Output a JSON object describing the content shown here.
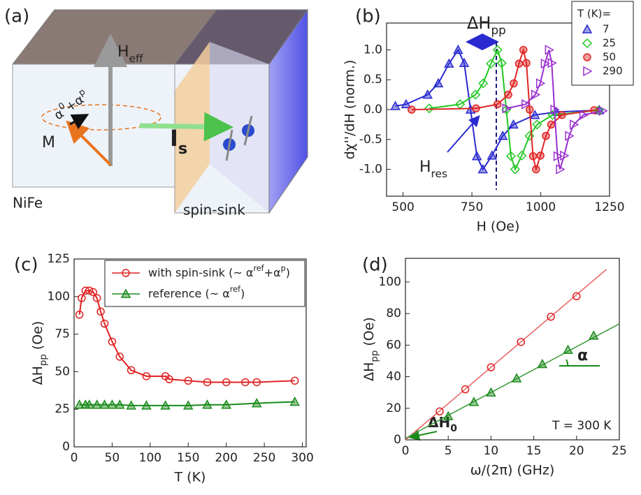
{
  "diagram": {
    "panel_label": "(a)",
    "labels": {
      "alpha": "α^0+α^p",
      "h_eff": "H_eff",
      "m": "M",
      "i_s": "I_s",
      "nife": "NiFe",
      "spin_sink": "spin-sink"
    }
  },
  "chart_data": [
    {
      "type": "line",
      "panel_label": "(b)",
      "x_label": "H (Oe)",
      "y_label": "dχ''/dH (norm.)",
      "xlim": [
        440,
        1250
      ],
      "ylim": [
        -1.45,
        1.45
      ],
      "xticks": [
        500,
        750,
        1000,
        1250
      ],
      "yticks": [
        {
          "value": -1,
          "label": "-1.0"
        },
        -0.5,
        {
          "value": 0,
          "label": "0.0"
        },
        0.5,
        {
          "value": 1,
          "label": "1.0"
        }
      ],
      "legend_title": "T (K)=",
      "legend": "upper right",
      "annotations": {
        "delta_h_pp": "ΔH_pp",
        "h_res": "H_res"
      },
      "series": [
        {
          "name": "7",
          "color": "#2a2ad0",
          "marker": "triangle",
          "filled": true,
          "line": true,
          "x": [
            472,
            511,
            589,
            628,
            667,
            700,
            722,
            745,
            768,
            790,
            823,
            862,
            901,
            979,
            1057,
            1213
          ],
          "values": [
            0.06,
            0.09,
            0.25,
            0.44,
            0.77,
            1.0,
            0.78,
            0,
            -0.78,
            -1.0,
            -0.77,
            -0.44,
            -0.25,
            -0.09,
            -0.04,
            -0.01
          ]
        },
        {
          "name": "25",
          "color": "#22c822",
          "marker": "diamond",
          "filled": false,
          "line": true,
          "x": [
            595,
            707,
            763,
            791,
            819,
            843,
            858,
            875,
            892,
            907,
            931,
            959,
            987,
            1043,
            1211
          ],
          "values": [
            0.02,
            0.09,
            0.25,
            0.44,
            0.77,
            1.0,
            0.78,
            0,
            -0.78,
            -1.0,
            -0.77,
            -0.44,
            -0.25,
            -0.09,
            -0.01
          ]
        },
        {
          "name": "50",
          "color": "#e02424",
          "marker": "circle",
          "filled": true,
          "line": true,
          "x": [
            531,
            765,
            843,
            882,
            902,
            921,
            937,
            948,
            960,
            972,
            983,
            999,
            1019,
            1038,
            1077,
            1194
          ],
          "values": [
            0,
            0.02,
            0.09,
            0.25,
            0.44,
            0.77,
            1.0,
            0.78,
            0,
            -0.78,
            -1.0,
            -0.77,
            -0.44,
            -0.25,
            -0.09,
            -0.01
          ]
        },
        {
          "name": "290",
          "color": "#9a30d0",
          "marker": "triangle-right",
          "filled": false,
          "line": true,
          "x": [
            875,
            945,
            980,
            998,
            1015,
            1030,
            1040,
            1050,
            1061,
            1070,
            1085,
            1103,
            1120,
            1155,
            1225
          ],
          "values": [
            0.02,
            0.09,
            0.25,
            0.44,
            0.77,
            1.0,
            0.78,
            0,
            -0.78,
            -1.0,
            -0.77,
            -0.44,
            -0.25,
            -0.09,
            -0.02
          ]
        }
      ]
    },
    {
      "type": "line",
      "panel_label": "(c)",
      "x_label": "T (K)",
      "y_label": "ΔH_pp (Oe)",
      "xlim": [
        0,
        305
      ],
      "ylim": [
        0,
        125
      ],
      "xticks": [
        0,
        50,
        100,
        150,
        200,
        250,
        300
      ],
      "yticks": [
        0,
        25,
        50,
        75,
        100,
        125
      ],
      "legend": "upper right",
      "series": [
        {
          "name": "with spin-sink (~ α^ref+α^p)",
          "color": "#e02020",
          "marker": "circle",
          "filled": false,
          "line": true,
          "x": [
            7,
            10,
            15,
            20,
            25,
            30,
            35,
            40,
            50,
            60,
            75,
            95,
            120,
            125,
            150,
            175,
            200,
            225,
            240,
            290
          ],
          "values": [
            88,
            99,
            104,
            104,
            103,
            99,
            90,
            82,
            70,
            60,
            51,
            47,
            47,
            45,
            44,
            43,
            43,
            43,
            43,
            44
          ]
        },
        {
          "name": "reference (~ α^ref)",
          "color": "#1a8a1a",
          "marker": "triangle",
          "filled": true,
          "line": true,
          "x": [
            7,
            15,
            20,
            30,
            40,
            50,
            60,
            75,
            95,
            120,
            150,
            175,
            200,
            240,
            290
          ],
          "values": [
            28,
            28,
            28,
            28,
            28,
            28,
            28,
            27.5,
            27.5,
            27.5,
            27.5,
            28,
            28,
            29,
            30
          ]
        }
      ]
    },
    {
      "type": "scatter",
      "panel_label": "(d)",
      "x_label": "ω/(2π) (GHz)",
      "y_label": "ΔH_pp (Oe)",
      "xlim": [
        0,
        25
      ],
      "ylim": [
        0,
        115
      ],
      "xticks": [
        0,
        5,
        10,
        15,
        20,
        25
      ],
      "yticks": [
        0,
        20,
        40,
        60,
        80,
        100
      ],
      "annotations": {
        "temperature": "T = 300 K",
        "alpha": "α",
        "delta_h0": "ΔH_0"
      },
      "series": [
        {
          "color": "#e02020",
          "marker": "circle",
          "filled": false,
          "line": false,
          "x": [
            4,
            7,
            10,
            13.5,
            17,
            20
          ],
          "values": [
            18,
            32,
            46,
            62,
            78,
            91
          ]
        },
        {
          "color": "#1a8a1a",
          "marker": "triangle",
          "filled": true,
          "line": false,
          "x": [
            5,
            8,
            10,
            13,
            16,
            19,
            22
          ],
          "values": [
            15,
            24,
            30,
            39,
            48,
            57,
            66
          ]
        }
      ],
      "fits": [
        {
          "color": "#e86060",
          "x": [
            0,
            23.5
          ],
          "values": [
            0,
            108
          ]
        },
        {
          "color": "#3a9a3a",
          "x": [
            0,
            25
          ],
          "values": [
            1,
            73.5
          ]
        }
      ]
    }
  ]
}
